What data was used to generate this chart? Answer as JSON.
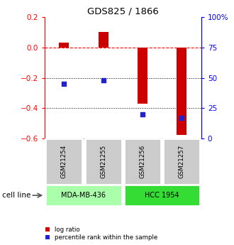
{
  "title": "GDS825 / 1866",
  "samples": [
    "GSM21254",
    "GSM21255",
    "GSM21256",
    "GSM21257"
  ],
  "log_ratio": [
    0.03,
    0.1,
    -0.37,
    -0.575
  ],
  "percentile_rank": [
    45,
    48,
    20,
    17
  ],
  "left_ylim": [
    -0.6,
    0.2
  ],
  "right_ylim": [
    0,
    100
  ],
  "left_yticks": [
    -0.6,
    -0.4,
    -0.2,
    0.0,
    0.2
  ],
  "right_yticks": [
    0,
    25,
    50,
    75,
    100
  ],
  "right_yticklabels": [
    "0",
    "25",
    "50",
    "75",
    "100%"
  ],
  "hline_y": 0.0,
  "dotted_lines": [
    -0.2,
    -0.4
  ],
  "bar_color": "#cc0000",
  "point_color": "#2222cc",
  "cell_lines": [
    {
      "label": "MDA-MB-436",
      "samples": [
        0,
        1
      ],
      "color": "#aaffaa"
    },
    {
      "label": "HCC 1954",
      "samples": [
        2,
        3
      ],
      "color": "#33dd33"
    }
  ],
  "sample_box_color": "#cccccc",
  "cell_line_label": "cell line",
  "legend_items": [
    {
      "color": "#cc0000",
      "label": "log ratio"
    },
    {
      "color": "#2222cc",
      "label": "percentile rank within the sample"
    }
  ],
  "bar_width": 0.25,
  "xlim": [
    -0.5,
    3.5
  ]
}
